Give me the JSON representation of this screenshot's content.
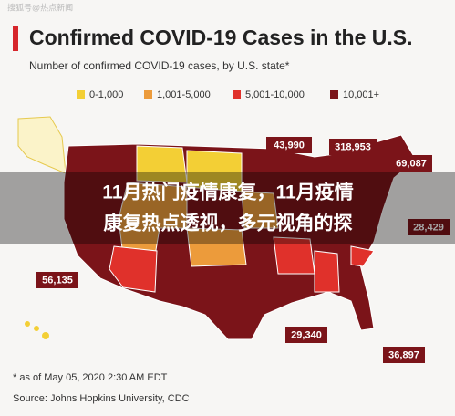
{
  "watermark": "搜狐号@热点新闻",
  "header": {
    "title": "Confirmed COVID-19 Cases in the U.S.",
    "subtitle": "Number of confirmed COVID-19 cases, by U.S. state*"
  },
  "legend": [
    {
      "label": "0-1,000",
      "color": "#f3cf35"
    },
    {
      "label": "1,001-5,000",
      "color": "#ec9b3b"
    },
    {
      "label": "5,001-10,000",
      "color": "#e0312b"
    },
    {
      "label": "10,001+",
      "color": "#7b1419"
    }
  ],
  "callouts": [
    "43,990",
    "318,953",
    "69,087",
    "28,429",
    "56,135",
    "29,340",
    "36,897"
  ],
  "overlay": {
    "lines": [
      "11月热门疫情康复，11月疫情",
      "康复热点透视，多元视角的探"
    ]
  },
  "footer": {
    "note": "* as of May 05, 2020 2:30 AM EDT",
    "source": "Source: Johns Hopkins University, CDC"
  }
}
